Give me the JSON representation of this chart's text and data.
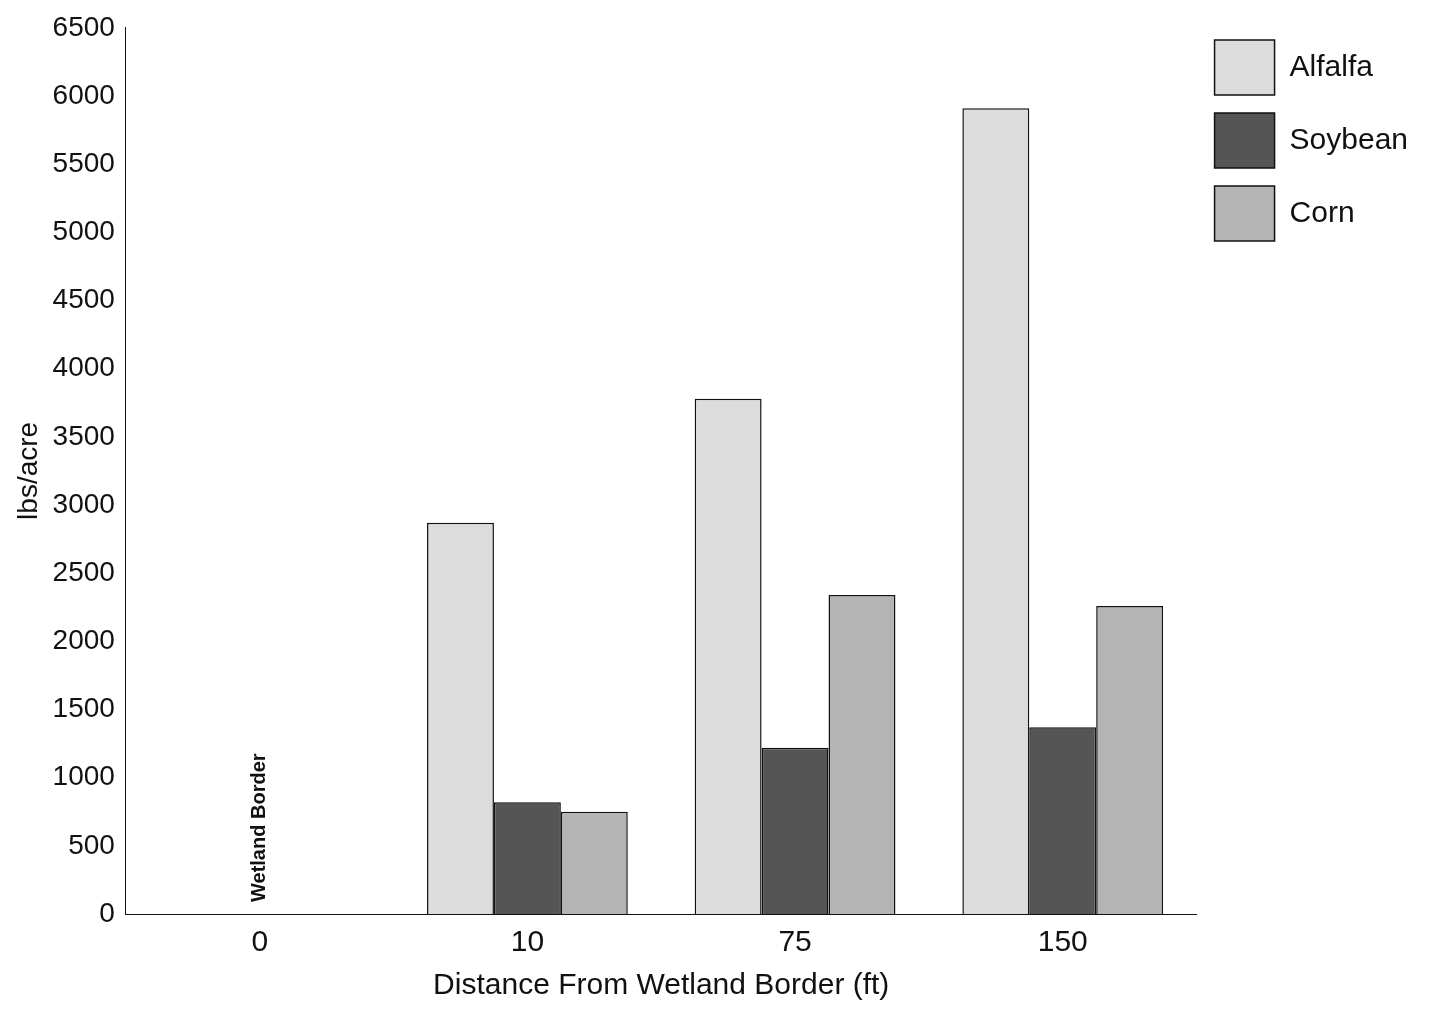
{
  "chart_data": {
    "type": "bar",
    "xlabel": "Distance From Wetland Border (ft)",
    "ylabel": "lbs/acre",
    "categories": [
      "0",
      "10",
      "75",
      "150"
    ],
    "series": [
      {
        "name": "Alfalfa",
        "color": "#dcdcdc",
        "values": [
          null,
          2870,
          3780,
          5910
        ]
      },
      {
        "name": "Soybean",
        "color": "#555555",
        "values": [
          null,
          820,
          1220,
          1370
        ]
      },
      {
        "name": "Corn",
        "color": "#b4b4b4",
        "values": [
          null,
          750,
          2340,
          2260
        ]
      }
    ],
    "ylim": [
      0,
      6500
    ],
    "yticks": [
      0,
      500,
      1000,
      1500,
      2000,
      2500,
      3000,
      3500,
      4000,
      4500,
      5000,
      5500,
      6000,
      6500
    ],
    "grid": false,
    "legend": "top right",
    "annotations": [
      "Wetland Border"
    ]
  }
}
